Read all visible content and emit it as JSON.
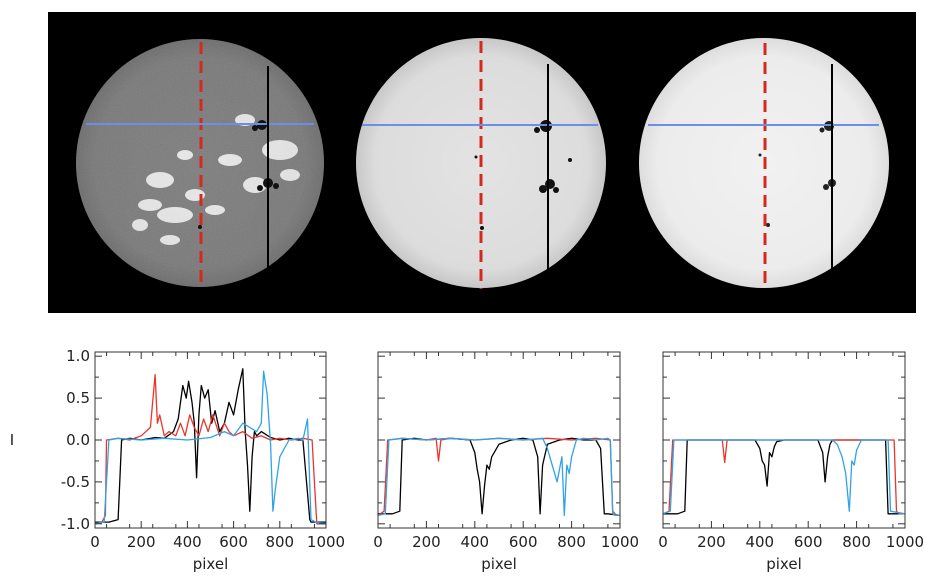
{
  "figure": {
    "image_background": "#000000",
    "disk_shades": [
      "#7d7d7d",
      "#e3e3e3",
      "#f1f1f1"
    ],
    "marker_colors": {
      "dashed_vertical": "#d42a1e",
      "horizontal": "#6b8fe6",
      "solid_vertical": "#000000"
    }
  },
  "chart_data": [
    {
      "type": "line",
      "xlabel": "pixel",
      "ylabel": "I",
      "xlim": [
        0,
        1000
      ],
      "ylim": [
        -1.05,
        1.05
      ],
      "xticks": [
        "0",
        "200",
        "400",
        "600",
        "800",
        "1000"
      ],
      "yticks": [
        "1.0",
        "0.5",
        "0.0",
        "-0.5",
        "-1.0"
      ],
      "series": [
        {
          "color": "#000000",
          "x": [
            0,
            60,
            100,
            115,
            150,
            200,
            260,
            300,
            340,
            360,
            380,
            395,
            405,
            420,
            430,
            440,
            450,
            460,
            475,
            490,
            505,
            520,
            540,
            560,
            580,
            600,
            620,
            640,
            650,
            660,
            670,
            680,
            690,
            700,
            720,
            760,
            800,
            840,
            880,
            900,
            930,
            935,
            1000
          ],
          "y": [
            -0.98,
            -0.98,
            -0.95,
            0.0,
            0.02,
            0.0,
            0.03,
            0.02,
            0.1,
            0.25,
            0.65,
            0.5,
            0.7,
            0.45,
            0.2,
            -0.45,
            0.3,
            0.65,
            0.5,
            0.6,
            0.2,
            0.35,
            0.1,
            0.2,
            0.45,
            0.3,
            0.6,
            0.85,
            0.1,
            -0.3,
            -0.85,
            -0.2,
            0.1,
            0.05,
            0.1,
            0.03,
            0.0,
            0.02,
            0.0,
            0.0,
            -0.95,
            -0.98,
            -0.98
          ]
        },
        {
          "color": "#e8362b",
          "x": [
            0,
            30,
            45,
            50,
            100,
            150,
            200,
            240,
            260,
            270,
            280,
            300,
            320,
            350,
            370,
            390,
            410,
            430,
            450,
            470,
            490,
            510,
            540,
            560,
            580,
            600,
            640,
            680,
            720,
            760,
            800,
            850,
            900,
            940,
            950,
            960,
            1000
          ],
          "y": [
            -1.0,
            -0.98,
            -0.9,
            0.0,
            0.02,
            0.0,
            0.05,
            0.15,
            0.78,
            0.2,
            0.3,
            0.05,
            0.1,
            0.05,
            0.2,
            0.05,
            0.3,
            0.15,
            0.05,
            0.25,
            0.1,
            0.3,
            0.05,
            0.2,
            0.1,
            0.05,
            0.1,
            0.02,
            0.05,
            0.0,
            0.02,
            0.0,
            0.02,
            0.0,
            -0.5,
            -1.0,
            -1.0
          ]
        },
        {
          "color": "#2fa3e8",
          "x": [
            0,
            40,
            60,
            100,
            200,
            300,
            400,
            500,
            560,
            600,
            640,
            700,
            720,
            730,
            745,
            760,
            770,
            780,
            800,
            840,
            880,
            900,
            920,
            935,
            955,
            1000
          ],
          "y": [
            -1.0,
            -0.98,
            0.0,
            0.02,
            0.0,
            0.02,
            0.0,
            0.03,
            0.1,
            0.05,
            0.2,
            0.1,
            0.2,
            0.82,
            0.55,
            -0.05,
            -0.85,
            -0.6,
            -0.2,
            0.0,
            0.02,
            0.0,
            0.25,
            -0.95,
            -0.98,
            -1.0
          ]
        }
      ]
    },
    {
      "type": "line",
      "xlabel": "pixel",
      "ylabel": "",
      "xlim": [
        0,
        1000
      ],
      "ylim": [
        -1.05,
        1.05
      ],
      "xticks": [
        "0",
        "200",
        "400",
        "600",
        "800",
        "1000"
      ],
      "yticks": [],
      "series": [
        {
          "color": "#000000",
          "x": [
            0,
            60,
            90,
            100,
            150,
            200,
            300,
            380,
            400,
            410,
            420,
            430,
            440,
            450,
            460,
            470,
            480,
            500,
            550,
            600,
            640,
            660,
            670,
            680,
            700,
            750,
            800,
            850,
            900,
            920,
            935,
            950,
            1000
          ],
          "y": [
            -0.88,
            -0.88,
            -0.85,
            0.0,
            0.02,
            0.0,
            0.02,
            0.0,
            -0.15,
            -0.35,
            -0.5,
            -0.88,
            -0.55,
            -0.3,
            -0.35,
            -0.2,
            -0.15,
            -0.05,
            0.0,
            0.02,
            0.0,
            -0.2,
            -0.88,
            -0.3,
            -0.05,
            0.0,
            0.02,
            0.0,
            0.0,
            -0.1,
            -0.88,
            -0.88,
            -0.9
          ]
        },
        {
          "color": "#e8362b",
          "x": [
            0,
            25,
            40,
            100,
            200,
            240,
            250,
            260,
            300,
            400,
            500,
            600,
            700,
            800,
            900,
            960,
            970,
            985,
            1000
          ],
          "y": [
            -0.9,
            -0.85,
            0.0,
            0.02,
            0.0,
            0.02,
            -0.25,
            0.0,
            0.02,
            0.0,
            0.02,
            0.0,
            0.02,
            0.0,
            0.02,
            0.0,
            -0.85,
            -0.9,
            -0.9
          ]
        },
        {
          "color": "#2fa3e8",
          "x": [
            0,
            30,
            45,
            100,
            200,
            300,
            400,
            500,
            600,
            680,
            700,
            720,
            740,
            760,
            770,
            780,
            790,
            800,
            820,
            850,
            900,
            950,
            960,
            970,
            980,
            990,
            1000
          ],
          "y": [
            -0.9,
            -0.88,
            0.0,
            0.02,
            0.0,
            0.02,
            0.0,
            0.02,
            0.0,
            0.02,
            -0.1,
            -0.3,
            -0.5,
            -0.2,
            -0.9,
            -0.3,
            -0.4,
            -0.2,
            0.0,
            0.02,
            0.0,
            0.02,
            0.0,
            -0.88,
            -0.9,
            -0.9,
            -0.9
          ]
        }
      ]
    },
    {
      "type": "line",
      "xlabel": "pixel",
      "ylabel": "",
      "xlim": [
        0,
        1000
      ],
      "ylim": [
        -1.05,
        1.05
      ],
      "xticks": [
        "0",
        "200",
        "400",
        "600",
        "800",
        "1000"
      ],
      "yticks": [],
      "series": [
        {
          "color": "#000000",
          "x": [
            0,
            60,
            90,
            100,
            200,
            300,
            380,
            400,
            410,
            420,
            430,
            440,
            450,
            460,
            470,
            500,
            550,
            600,
            640,
            660,
            670,
            680,
            690,
            700,
            750,
            800,
            850,
            900,
            920,
            930,
            950,
            1000
          ],
          "y": [
            -0.88,
            -0.88,
            -0.85,
            0.0,
            0.0,
            0.0,
            0.0,
            -0.1,
            -0.25,
            -0.3,
            -0.55,
            -0.15,
            -0.2,
            -0.08,
            -0.02,
            0.0,
            0.0,
            0.0,
            0.0,
            -0.15,
            -0.5,
            -0.2,
            -0.05,
            0.0,
            0.0,
            0.0,
            0.0,
            0.0,
            0.0,
            -0.88,
            -0.88,
            -0.88
          ]
        },
        {
          "color": "#e8362b",
          "x": [
            0,
            25,
            40,
            100,
            200,
            245,
            255,
            265,
            300,
            400,
            500,
            600,
            700,
            800,
            900,
            955,
            965,
            975,
            1000
          ],
          "y": [
            -0.88,
            -0.85,
            0.0,
            0.0,
            0.0,
            0.0,
            -0.27,
            0.0,
            0.0,
            0.0,
            0.0,
            0.0,
            0.0,
            0.0,
            0.0,
            0.0,
            -0.85,
            -0.88,
            -0.88
          ]
        },
        {
          "color": "#2fa3e8",
          "x": [
            0,
            30,
            45,
            100,
            200,
            300,
            400,
            500,
            600,
            700,
            720,
            740,
            755,
            770,
            780,
            790,
            800,
            820,
            900,
            930,
            940,
            1000
          ],
          "y": [
            -0.88,
            -0.85,
            0.0,
            0.0,
            0.0,
            0.0,
            0.0,
            0.0,
            0.0,
            0.0,
            -0.05,
            -0.2,
            -0.4,
            -0.85,
            -0.25,
            -0.3,
            -0.12,
            0.0,
            0.0,
            0.0,
            -0.85,
            -0.88
          ]
        }
      ]
    }
  ]
}
